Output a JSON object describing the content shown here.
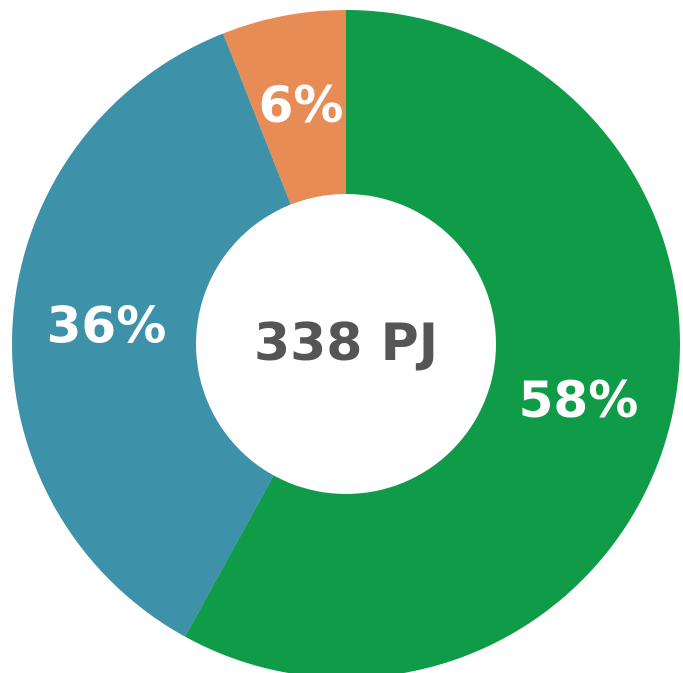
{
  "chart_data": {
    "type": "donut",
    "values": [
      58,
      36,
      6
    ],
    "value_labels": [
      "58%",
      "36%",
      "6%"
    ],
    "colors": [
      "#109b48",
      "#3d91a8",
      "#e88c55"
    ],
    "center_label": "338 PJ"
  }
}
